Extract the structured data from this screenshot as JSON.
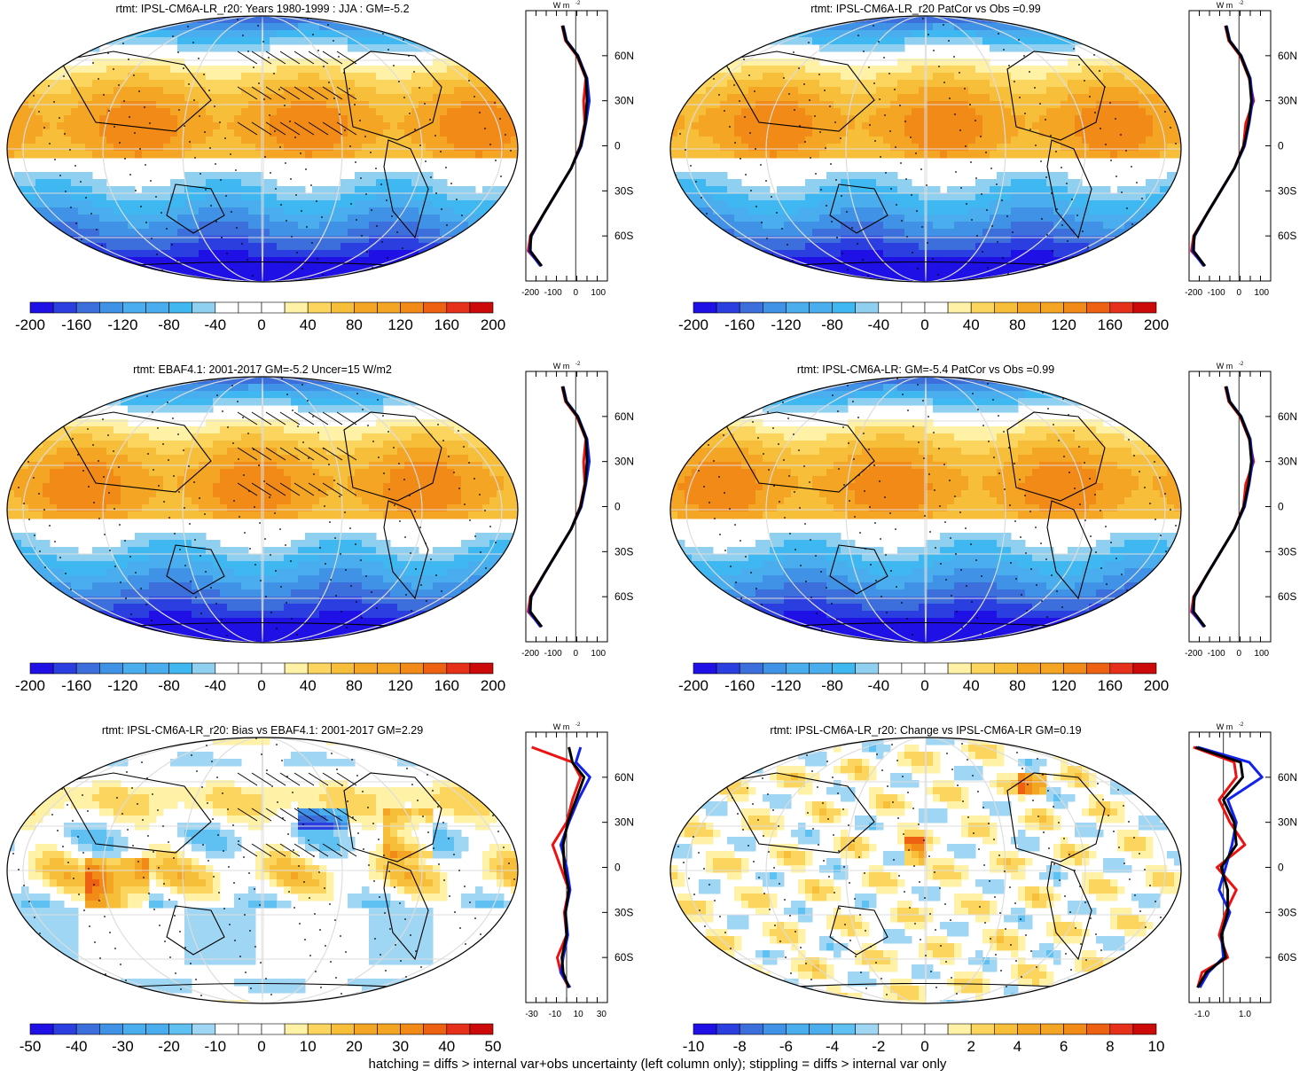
{
  "colors": {
    "abs_scale": [
      "#1f10e6",
      "#2b3fe0",
      "#3c6fdc",
      "#3f92e6",
      "#4aaeee",
      "#3fb8f2",
      "#8fcff0",
      "#ffffff",
      "#ffffff",
      "#fff2a6",
      "#fcd55e",
      "#f7be3a",
      "#f5a524",
      "#f28a18",
      "#ee6012",
      "#e6301a",
      "#cc0a0a"
    ],
    "diff_scale": [
      "#1f10e6",
      "#2b3fe0",
      "#3c6fdc",
      "#3f92e6",
      "#4aaeee",
      "#5fc0f2",
      "#9fd6f3",
      "#ffffff",
      "#ffffff",
      "#fff2a6",
      "#fcd55e",
      "#f7be3a",
      "#f5a524",
      "#f28a18",
      "#ee6012",
      "#e6301a",
      "#cc0a0a"
    ],
    "line_red": "#ee1111",
    "line_blue": "#1122ee",
    "line_black": "#000000"
  },
  "panels": [
    {
      "id": "p1",
      "title": "rtmt: IPSL-CM6A-LR_r20: Years 1980-1999 : JJA : GM=-5.2",
      "colorbar_ticks": [
        "-200",
        "-160",
        "-120",
        "-80",
        "-40",
        "0",
        "40",
        "80",
        "120",
        "160",
        "200"
      ],
      "profile_unit": "W m",
      "profile_unit_sup": "-2",
      "profile_xticks": [
        "-200",
        "-100",
        "0",
        "100"
      ],
      "profile_yticks": [
        "60N",
        "30N",
        "0",
        "30S",
        "60S"
      ],
      "field": "abs",
      "hatch": true
    },
    {
      "id": "p2",
      "title": "rtmt: IPSL-CM6A-LR_r20 PatCor vs Obs =0.99",
      "colorbar_ticks": [
        "-200",
        "-160",
        "-120",
        "-80",
        "-40",
        "0",
        "40",
        "80",
        "120",
        "160",
        "200"
      ],
      "profile_unit": "W m",
      "profile_unit_sup": "-2",
      "profile_xticks": [
        "-200",
        "-100",
        "0",
        "100"
      ],
      "profile_yticks": [
        "60N",
        "30N",
        "0",
        "30S",
        "60S"
      ],
      "field": "abs",
      "hatch": false
    },
    {
      "id": "p3",
      "title": "rtmt: EBAF4.1: 2001-2017 GM=-5.2 Uncer=15 W/m2",
      "colorbar_ticks": [
        "-200",
        "-160",
        "-120",
        "-80",
        "-40",
        "0",
        "40",
        "80",
        "120",
        "160",
        "200"
      ],
      "profile_unit": "W m",
      "profile_unit_sup": "-2",
      "profile_xticks": [
        "-200",
        "-100",
        "0",
        "100"
      ],
      "profile_yticks": [
        "60N",
        "30N",
        "0",
        "30S",
        "60S"
      ],
      "field": "abs",
      "hatch": true
    },
    {
      "id": "p4",
      "title": "rtmt: IPSL-CM6A-LR: GM=-5.4 PatCor vs Obs =0.99",
      "colorbar_ticks": [
        "-200",
        "-160",
        "-120",
        "-80",
        "-40",
        "0",
        "40",
        "80",
        "120",
        "160",
        "200"
      ],
      "profile_unit": "W m",
      "profile_unit_sup": "-2",
      "profile_xticks": [
        "-200",
        "-100",
        "0",
        "100"
      ],
      "profile_yticks": [
        "60N",
        "30N",
        "0",
        "30S",
        "60S"
      ],
      "field": "abs",
      "hatch": false
    },
    {
      "id": "p5",
      "title": "rtmt: IPSL-CM6A-LR_r20: Bias vs EBAF4.1: 2001-2017 GM=2.29",
      "colorbar_ticks": [
        "-50",
        "-40",
        "-30",
        "-20",
        "-10",
        "0",
        "10",
        "20",
        "30",
        "40",
        "50"
      ],
      "profile_unit": "W m",
      "profile_unit_sup": "-2",
      "profile_xticks": [
        "-30",
        "-10",
        "10",
        "30"
      ],
      "profile_yticks": [
        "60N",
        "30N",
        "0",
        "30S",
        "60S"
      ],
      "field": "bias",
      "hatch": true
    },
    {
      "id": "p6",
      "title": "rtmt: IPSL-CM6A-LR_r20: Change vs IPSL-CM6A-LR GM=0.19",
      "colorbar_ticks": [
        "-10",
        "-8",
        "-6",
        "-4",
        "-2",
        "0",
        "2",
        "4",
        "6",
        "8",
        "10"
      ],
      "profile_unit": "W m",
      "profile_unit_sup": "-2",
      "profile_xticks": [
        "-1.0",
        "1.0"
      ],
      "profile_yticks": [
        "60N",
        "30N",
        "0",
        "30S",
        "60S"
      ],
      "field": "change",
      "hatch": false
    }
  ],
  "footnote": "hatching = diffs > internal var+obs uncertainty (left column only); stippling = diffs > internal var only",
  "chart_data": [
    {
      "type": "line",
      "title": "rtmt: IPSL-CM6A-LR_r20: Years 1980-1999 : JJA : GM=-5.2",
      "x_label": "W m-2",
      "y": [
        80,
        70,
        60,
        45,
        30,
        15,
        0,
        -15,
        -30,
        -45,
        -60,
        -70,
        -80
      ],
      "xlim": [
        -220,
        140
      ],
      "series": [
        {
          "values": [
            -60,
            -45,
            5,
            45,
            35,
            40,
            20,
            -20,
            -80,
            -140,
            -200,
            -210,
            -150
          ]
        },
        {
          "values": [
            -55,
            -40,
            10,
            50,
            60,
            45,
            25,
            -20,
            -80,
            -140,
            -195,
            -205,
            -155
          ]
        },
        {
          "values": [
            -58,
            -42,
            8,
            47,
            50,
            42,
            22,
            -20,
            -80,
            -140,
            -198,
            -200,
            -150
          ]
        }
      ]
    },
    {
      "type": "line",
      "title": "rtmt: IPSL-CM6A-LR_r20 PatCor vs Obs =0.99",
      "x_label": "W m-2",
      "y": [
        80,
        70,
        60,
        45,
        30,
        15,
        0,
        -15,
        -30,
        -45,
        -60,
        -70,
        -80
      ],
      "xlim": [
        -220,
        140
      ],
      "series": [
        {
          "values": [
            -60,
            -45,
            5,
            45,
            65,
            30,
            20,
            -20,
            -80,
            -140,
            -200,
            -210,
            -150
          ]
        },
        {
          "values": [
            -55,
            -40,
            10,
            50,
            60,
            45,
            25,
            -20,
            -80,
            -140,
            -195,
            -205,
            -155
          ]
        },
        {
          "values": [
            -58,
            -42,
            8,
            47,
            55,
            42,
            22,
            -20,
            -80,
            -140,
            -198,
            -200,
            -150
          ]
        }
      ]
    },
    {
      "type": "line",
      "title": "rtmt: EBAF4.1: 2001-2017 GM=-5.2 Uncer=15 W/m2",
      "x_label": "W m-2",
      "y": [
        80,
        70,
        60,
        45,
        30,
        15,
        0,
        -15,
        -30,
        -45,
        -60,
        -70,
        -80
      ],
      "xlim": [
        -220,
        140
      ],
      "series": [
        {
          "values": [
            -60,
            -45,
            5,
            45,
            35,
            40,
            20,
            -20,
            -80,
            -140,
            -200,
            -210,
            -150
          ]
        },
        {
          "values": [
            -55,
            -40,
            10,
            50,
            60,
            45,
            25,
            -20,
            -80,
            -140,
            -195,
            -205,
            -155
          ]
        },
        {
          "values": [
            -58,
            -42,
            8,
            47,
            50,
            42,
            22,
            -20,
            -80,
            -140,
            -198,
            -200,
            -150
          ]
        }
      ]
    },
    {
      "type": "line",
      "title": "rtmt: IPSL-CM6A-LR: GM=-5.4 PatCor vs Obs =0.99",
      "x_label": "W m-2",
      "y": [
        80,
        70,
        60,
        45,
        30,
        15,
        0,
        -15,
        -30,
        -45,
        -60,
        -70,
        -80
      ],
      "xlim": [
        -220,
        140
      ],
      "series": [
        {
          "values": [
            -60,
            -45,
            5,
            45,
            65,
            30,
            20,
            -20,
            -80,
            -140,
            -200,
            -210,
            -150
          ]
        },
        {
          "values": [
            -55,
            -40,
            10,
            50,
            60,
            45,
            25,
            -20,
            -80,
            -140,
            -195,
            -205,
            -155
          ]
        },
        {
          "values": [
            -58,
            -42,
            8,
            47,
            55,
            42,
            22,
            -20,
            -80,
            -140,
            -198,
            -200,
            -150
          ]
        }
      ]
    },
    {
      "type": "line",
      "title": "rtmt: IPSL-CM6A-LR_r20: Bias vs EBAF4.1: 2001-2017 GM=2.29",
      "x_label": "W m-2",
      "y": [
        80,
        70,
        60,
        45,
        30,
        15,
        0,
        -15,
        -30,
        -45,
        -60,
        -70,
        -80
      ],
      "xlim": [
        -35,
        35
      ],
      "series": [
        {
          "values": [
            -30,
            5,
            12,
            5,
            0,
            -12,
            -5,
            2,
            -2,
            0,
            -8,
            -5,
            2
          ]
        },
        {
          "values": [
            12,
            8,
            20,
            10,
            2,
            -5,
            0,
            3,
            -1,
            1,
            -3,
            -5,
            3
          ]
        },
        {
          "values": [
            2,
            5,
            15,
            8,
            1,
            -3,
            -2,
            2,
            -1,
            0,
            -4,
            -3,
            2
          ]
        }
      ]
    },
    {
      "type": "line",
      "title": "rtmt: IPSL-CM6A-LR_r20: Change vs IPSL-CM6A-LR GM=0.19",
      "x_label": "W m-2",
      "y": [
        80,
        70,
        60,
        45,
        30,
        15,
        0,
        -15,
        -30,
        -45,
        -60,
        -70,
        -80
      ],
      "xlim": [
        -1.6,
        2.2
      ],
      "series": [
        {
          "values": [
            -1.4,
            0.5,
            0.6,
            -0.2,
            0.3,
            1.0,
            -0.3,
            0.6,
            0.1,
            -0.2,
            0.2,
            -1.0,
            -1.2
          ]
        },
        {
          "values": [
            -1.2,
            1.2,
            1.8,
            0.2,
            0.6,
            0.4,
            0.1,
            -0.2,
            0.3,
            -0.1,
            0.0,
            -0.7,
            -1.1
          ]
        },
        {
          "values": [
            -1.3,
            0.8,
            0.9,
            0.0,
            0.5,
            0.6,
            -0.1,
            0.2,
            0.2,
            -0.1,
            0.1,
            -0.8,
            -1.2
          ]
        }
      ]
    }
  ]
}
